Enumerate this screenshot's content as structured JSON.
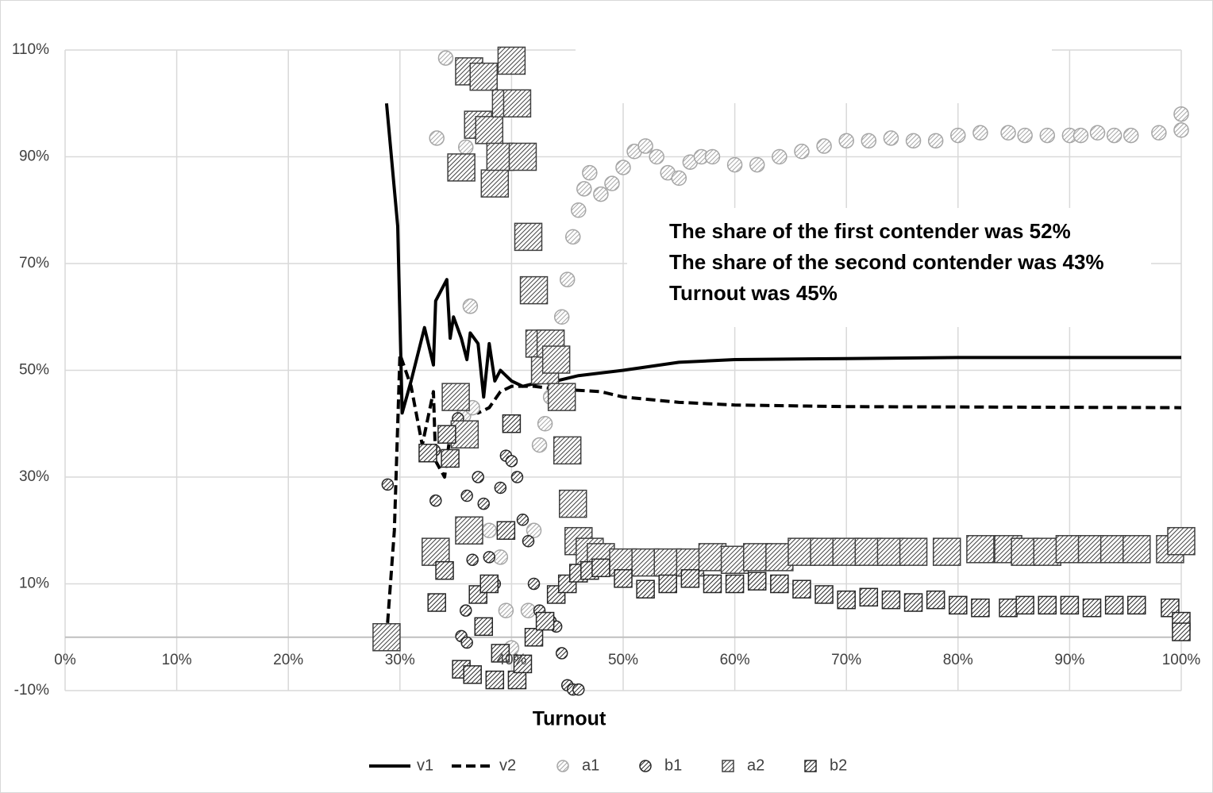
{
  "chart_data": {
    "type": "line",
    "x_label": "Turnout",
    "annotations": [
      "The share of the first contender was 52%",
      "The share of the second contender was 43%",
      "Turnout was 45%"
    ],
    "xlim": [
      0,
      100
    ],
    "xticks": [
      {
        "value": 0,
        "label": "0%"
      },
      {
        "value": 10,
        "label": "10%"
      },
      {
        "value": 20,
        "label": "20%"
      },
      {
        "value": 30,
        "label": "30%"
      },
      {
        "value": 40,
        "label": "40%"
      },
      {
        "value": 50,
        "label": "50%"
      },
      {
        "value": 60,
        "label": "60%"
      },
      {
        "value": 70,
        "label": "70%"
      },
      {
        "value": 80,
        "label": "80%"
      },
      {
        "value": 90,
        "label": "90%"
      },
      {
        "value": 100,
        "label": "100%"
      }
    ],
    "ylim": [
      -10,
      110
    ],
    "yticks": [
      {
        "value": -10,
        "label": "-10%"
      },
      {
        "value": 10,
        "label": "10%"
      },
      {
        "value": 30,
        "label": "30%"
      },
      {
        "value": 50,
        "label": "50%"
      },
      {
        "value": 70,
        "label": "70%"
      },
      {
        "value": 90,
        "label": "90%"
      },
      {
        "value": 110,
        "label": "110%"
      }
    ],
    "grid": true,
    "legend": "bottom",
    "series": [
      {
        "name": "v1",
        "color": "#000000",
        "line": "solid",
        "x": [
          28.8,
          29.8,
          30.2,
          31,
          32.2,
          33,
          33.2,
          34.2,
          34.5,
          34.8,
          35.5,
          36,
          36.3,
          37,
          37.5,
          38,
          38.5,
          39,
          40,
          41,
          42,
          44,
          46,
          50,
          55,
          60,
          70,
          80,
          100
        ],
        "values": [
          100,
          77,
          42,
          48,
          58,
          51,
          63,
          67,
          56,
          60,
          56,
          52,
          57,
          55,
          45,
          55,
          48,
          50,
          48,
          47,
          47.5,
          48,
          49,
          50,
          51.5,
          52,
          52.2,
          52.4,
          52.4
        ]
      },
      {
        "name": "v2",
        "color": "#000000",
        "line": "dashed",
        "x": [
          28.8,
          29.5,
          30,
          31,
          32,
          33,
          33.2,
          34,
          34.5,
          35,
          36,
          37,
          38,
          39,
          40,
          42,
          44,
          48,
          50,
          55,
          60,
          70,
          100
        ],
        "values": [
          0,
          20,
          53,
          47,
          36,
          46,
          33,
          30,
          38,
          40,
          43,
          42,
          43,
          46,
          47,
          47,
          46.5,
          46,
          45,
          44,
          43.5,
          43.2,
          43
        ]
      },
      {
        "name": "a1",
        "color": "#a6a6a6",
        "marker": "circle",
        "marker_size": 9,
        "x": [
          33.3,
          34.1,
          35.9,
          36.3,
          35.7,
          36.5,
          38,
          39,
          39.5,
          40,
          40.5,
          41,
          41.5,
          42,
          42.5,
          43,
          43.5,
          44,
          44.5,
          45,
          45.5,
          46,
          46.5,
          47,
          48,
          49,
          50,
          51,
          52,
          53,
          54,
          55,
          56,
          57,
          58,
          60,
          62,
          64,
          66,
          68,
          70,
          72,
          74,
          76,
          78,
          80,
          82,
          84.5,
          86,
          88,
          90,
          91,
          92.5,
          94,
          95.5,
          98,
          100,
          100
        ],
        "values": [
          93.5,
          108.5,
          91.8,
          62,
          41.5,
          43,
          20,
          15,
          5,
          -2,
          -8,
          -5,
          5,
          20,
          36,
          40,
          45,
          52,
          60,
          67,
          75,
          80,
          84,
          87,
          83,
          85,
          88,
          91,
          92,
          90,
          87,
          86,
          89,
          90,
          90,
          88.5,
          88.5,
          90,
          91,
          92,
          93,
          93,
          93.5,
          93,
          93,
          94,
          94.5,
          94.5,
          94,
          94,
          94,
          94,
          94.5,
          94,
          94,
          94.5,
          98,
          95
        ]
      },
      {
        "name": "b1",
        "color": "#262626",
        "marker": "circle",
        "marker_size": 7,
        "x": [
          28.9,
          33.2,
          33.1,
          35.2,
          36,
          36.5,
          35.9,
          35.5,
          36,
          37,
          37.5,
          38,
          38.5,
          39,
          39.5,
          40,
          40.5,
          41,
          41.5,
          42,
          42.5,
          43,
          43.5,
          44,
          44.5,
          45,
          45.5,
          46
        ],
        "values": [
          28.6,
          25.6,
          35,
          41,
          26.5,
          14.5,
          5,
          0.2,
          -1,
          30,
          25,
          15,
          10,
          28,
          34,
          33,
          30,
          22,
          18,
          10,
          5,
          3,
          3,
          2,
          -3,
          -9,
          -9.8,
          -9.8
        ]
      },
      {
        "name": "a2",
        "color": "#404040",
        "marker": "square",
        "marker_size": 17,
        "x": [
          28.8,
          33.2,
          35,
          35.8,
          36.2,
          35.5,
          36.2,
          37,
          37.5,
          38,
          38.5,
          39,
          39.5,
          40,
          40.5,
          41,
          41.5,
          42,
          42.5,
          43,
          43.5,
          44,
          44.5,
          45,
          45.5,
          46,
          47,
          48,
          50,
          52,
          54,
          56,
          58,
          60,
          62,
          64,
          66,
          68,
          70,
          72,
          74,
          76,
          79,
          82,
          84.5,
          86,
          88,
          90,
          92,
          94,
          96,
          99,
          100
        ],
        "values": [
          0,
          16,
          45,
          38,
          20,
          88,
          106,
          96,
          105,
          95,
          85,
          90,
          100,
          108,
          100,
          90,
          75,
          65,
          55,
          50,
          55,
          52,
          45,
          35,
          25,
          18,
          16,
          15,
          14,
          14,
          14,
          14,
          15,
          14.5,
          15,
          15,
          16,
          16,
          16,
          16,
          16,
          16,
          16,
          16.5,
          16.5,
          16,
          16,
          16.5,
          16.5,
          16.5,
          16.5,
          16.5,
          18
        ]
      },
      {
        "name": "b2",
        "color": "#262626",
        "marker": "square",
        "marker_size": 11,
        "x": [
          32.5,
          33.3,
          34.2,
          34.5,
          34,
          35.5,
          36.5,
          37,
          37.5,
          38,
          38.5,
          39,
          39.5,
          40,
          40.5,
          41,
          42,
          43,
          44,
          45,
          46,
          47,
          48,
          50,
          52,
          54,
          56,
          58,
          60,
          62,
          64,
          66,
          68,
          70,
          72,
          74,
          76,
          78,
          80,
          82,
          84.5,
          86,
          88,
          90,
          92,
          94,
          96,
          99,
          100,
          100
        ],
        "values": [
          34.5,
          6.5,
          38,
          33.5,
          12.5,
          -6,
          -7,
          8,
          2,
          10,
          -8,
          -3,
          20,
          40,
          -8,
          -5,
          0,
          3,
          8,
          10,
          12,
          12.5,
          13,
          11,
          9,
          10,
          11,
          10,
          10,
          10.5,
          10,
          9,
          8,
          7,
          7.5,
          7,
          6.5,
          7,
          6,
          5.5,
          5.5,
          6,
          6,
          6,
          5.5,
          6,
          6,
          5.5,
          3,
          1
        ]
      }
    ]
  }
}
